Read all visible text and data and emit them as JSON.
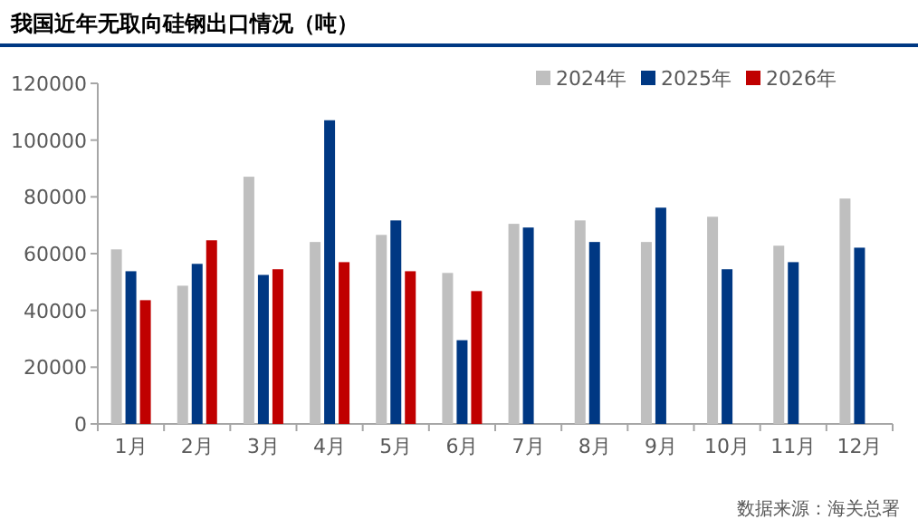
{
  "chart_data": {
    "type": "bar",
    "title": "我国近年无取向硅钢出口情况（吨）",
    "categories": [
      "1月",
      "2月",
      "3月",
      "4月",
      "5月",
      "6月",
      "7月",
      "8月",
      "9月",
      "10月",
      "11月",
      "12月"
    ],
    "series": [
      {
        "name": "2024年",
        "color": "#bfbfbf",
        "values": [
          61500,
          48700,
          87100,
          64100,
          66600,
          53200,
          70500,
          71700,
          64100,
          73000,
          62800,
          79400
        ]
      },
      {
        "name": "2025年",
        "color": "#003883",
        "values": [
          53800,
          56400,
          52500,
          107000,
          71700,
          29500,
          69200,
          64100,
          76200,
          54500,
          57000,
          62100
        ]
      },
      {
        "name": "2026年",
        "color": "#c00000",
        "values": [
          43600,
          64700,
          54500,
          57000,
          53800,
          46800,
          null,
          null,
          null,
          null,
          null,
          null
        ]
      }
    ],
    "ylim": [
      0,
      120000
    ],
    "yticks": [
      0,
      20000,
      40000,
      60000,
      80000,
      100000,
      120000
    ],
    "legend": "top right",
    "grid": false,
    "annotations": [
      "数据来源：海关总署"
    ]
  }
}
